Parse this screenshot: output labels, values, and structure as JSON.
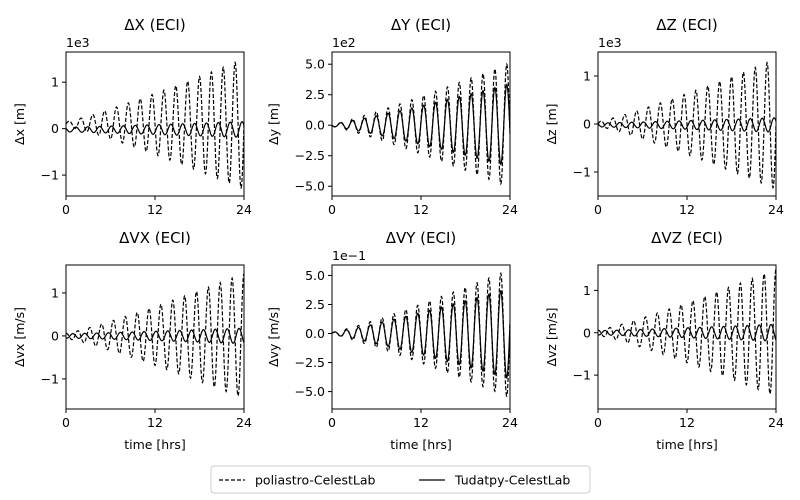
{
  "chart_data": [
    {
      "type": "line",
      "title": "ΔX (ECI)",
      "ylabel": "Δx [m]",
      "xlabel": "",
      "offset_text": "1e3",
      "xlim": [
        0,
        24
      ],
      "ylim": [
        -1.45,
        1.65
      ],
      "xticks": [
        0,
        12,
        24
      ],
      "xtick_labels": [
        "0",
        "12",
        "24"
      ],
      "yticks": [
        -1,
        0,
        1
      ],
      "ytick_labels": [
        "−1",
        "0",
        "1"
      ],
      "period_hrs": 1.6,
      "series": [
        {
          "name": "poliastro-CelestLab",
          "style": "dashed",
          "amp_start": 0.05,
          "amp_end": 1.4,
          "bias": 0.1,
          "phase": 0.0
        },
        {
          "name": "Tudatpy-CelestLab",
          "style": "solid",
          "amp_start": 0.05,
          "amp_end": 0.17,
          "bias": -0.02,
          "phase": 2.6
        }
      ]
    },
    {
      "type": "line",
      "title": "ΔY (ECI)",
      "ylabel": "Δy [m]",
      "xlabel": "",
      "offset_text": "1e2",
      "xlim": [
        0,
        24
      ],
      "ylim": [
        -5.8,
        6.0
      ],
      "xticks": [
        0,
        12,
        24
      ],
      "xtick_labels": [
        "0",
        "12",
        "24"
      ],
      "yticks": [
        -5.0,
        -2.5,
        0.0,
        2.5,
        5.0
      ],
      "ytick_labels": [
        "−5.0",
        "−2.5",
        "0.0",
        "2.5",
        "5.0"
      ],
      "period_hrs": 1.6,
      "series": [
        {
          "name": "poliastro-CelestLab",
          "style": "dashed",
          "amp_start": 0.1,
          "amp_end": 5.1,
          "bias": 0.0,
          "phase": 3.3
        },
        {
          "name": "Tudatpy-CelestLab",
          "style": "solid",
          "amp_start": 0.1,
          "amp_end": 3.4,
          "bias": 0.0,
          "phase": 3.3
        }
      ]
    },
    {
      "type": "line",
      "title": "ΔZ (ECI)",
      "ylabel": "Δz [m]",
      "xlabel": "",
      "offset_text": "1e3",
      "xlim": [
        0,
        24
      ],
      "ylim": [
        -1.5,
        1.5
      ],
      "xticks": [
        0,
        12,
        24
      ],
      "xtick_labels": [
        "0",
        "12",
        "24"
      ],
      "yticks": [
        -1,
        0,
        1
      ],
      "ytick_labels": [
        "−1",
        "0",
        "1"
      ],
      "period_hrs": 1.6,
      "series": [
        {
          "name": "poliastro-CelestLab",
          "style": "dashed",
          "amp_start": 0.05,
          "amp_end": 1.35,
          "bias": 0.0,
          "phase": 0.0
        },
        {
          "name": "Tudatpy-CelestLab",
          "style": "solid",
          "amp_start": 0.04,
          "amp_end": 0.15,
          "bias": -0.02,
          "phase": 2.6
        }
      ]
    },
    {
      "type": "line",
      "title": "ΔVX (ECI)",
      "ylabel": "Δvx [m/s]",
      "xlabel": "time [hrs]",
      "offset_text": "",
      "xlim": [
        0,
        24
      ],
      "ylim": [
        -1.7,
        1.65
      ],
      "xticks": [
        0,
        12,
        24
      ],
      "xtick_labels": [
        "0",
        "12",
        "24"
      ],
      "yticks": [
        -1,
        0,
        1
      ],
      "ytick_labels": [
        "−1",
        "0",
        "1"
      ],
      "period_hrs": 1.6,
      "series": [
        {
          "name": "poliastro-CelestLab",
          "style": "dashed",
          "amp_start": 0.06,
          "amp_end": 1.45,
          "bias": 0.0,
          "phase": 1.6
        },
        {
          "name": "Tudatpy-CelestLab",
          "style": "solid",
          "amp_start": 0.05,
          "amp_end": 0.18,
          "bias": 0.0,
          "phase": 4.2
        }
      ]
    },
    {
      "type": "line",
      "title": "ΔVY (ECI)",
      "ylabel": "Δvy [m/s]",
      "xlabel": "time [hrs]",
      "offset_text": "1e−1",
      "xlim": [
        0,
        24
      ],
      "ylim": [
        -6.5,
        5.9
      ],
      "xticks": [
        0,
        12,
        24
      ],
      "xtick_labels": [
        "0",
        "12",
        "24"
      ],
      "yticks": [
        -5.0,
        -2.5,
        0.0,
        2.5,
        5.0
      ],
      "ytick_labels": [
        "−5.0",
        "−2.5",
        "0.0",
        "2.5",
        "5.0"
      ],
      "period_hrs": 1.6,
      "series": [
        {
          "name": "poliastro-CelestLab",
          "style": "dashed",
          "amp_start": 0.1,
          "amp_end": 5.5,
          "bias": 0.0,
          "phase": 0.2
        },
        {
          "name": "Tudatpy-CelestLab",
          "style": "solid",
          "amp_start": 0.1,
          "amp_end": 3.9,
          "bias": 0.0,
          "phase": 0.2
        }
      ]
    },
    {
      "type": "line",
      "title": "ΔVZ (ECI)",
      "ylabel": "Δvz [m/s]",
      "xlabel": "time [hrs]",
      "offset_text": "",
      "xlim": [
        0,
        24
      ],
      "ylim": [
        -1.8,
        1.6
      ],
      "xticks": [
        0,
        12,
        24
      ],
      "xtick_labels": [
        "0",
        "12",
        "24"
      ],
      "yticks": [
        -1,
        0,
        1
      ],
      "ytick_labels": [
        "−1",
        "0",
        "1"
      ],
      "period_hrs": 1.6,
      "series": [
        {
          "name": "poliastro-CelestLab",
          "style": "dashed",
          "amp_start": 0.06,
          "amp_end": 1.5,
          "bias": 0.0,
          "phase": 1.6
        },
        {
          "name": "Tudatpy-CelestLab",
          "style": "solid",
          "amp_start": 0.05,
          "amp_end": 0.2,
          "bias": 0.0,
          "phase": 4.2
        }
      ]
    }
  ],
  "legend": {
    "placement": "bottom-center",
    "entries": [
      {
        "label": "poliastro-CelestLab",
        "style": "dashed"
      },
      {
        "label": "Tudatpy-CelestLab",
        "style": "solid"
      }
    ]
  },
  "colors": {
    "line": "#000000",
    "background": "#ffffff"
  }
}
